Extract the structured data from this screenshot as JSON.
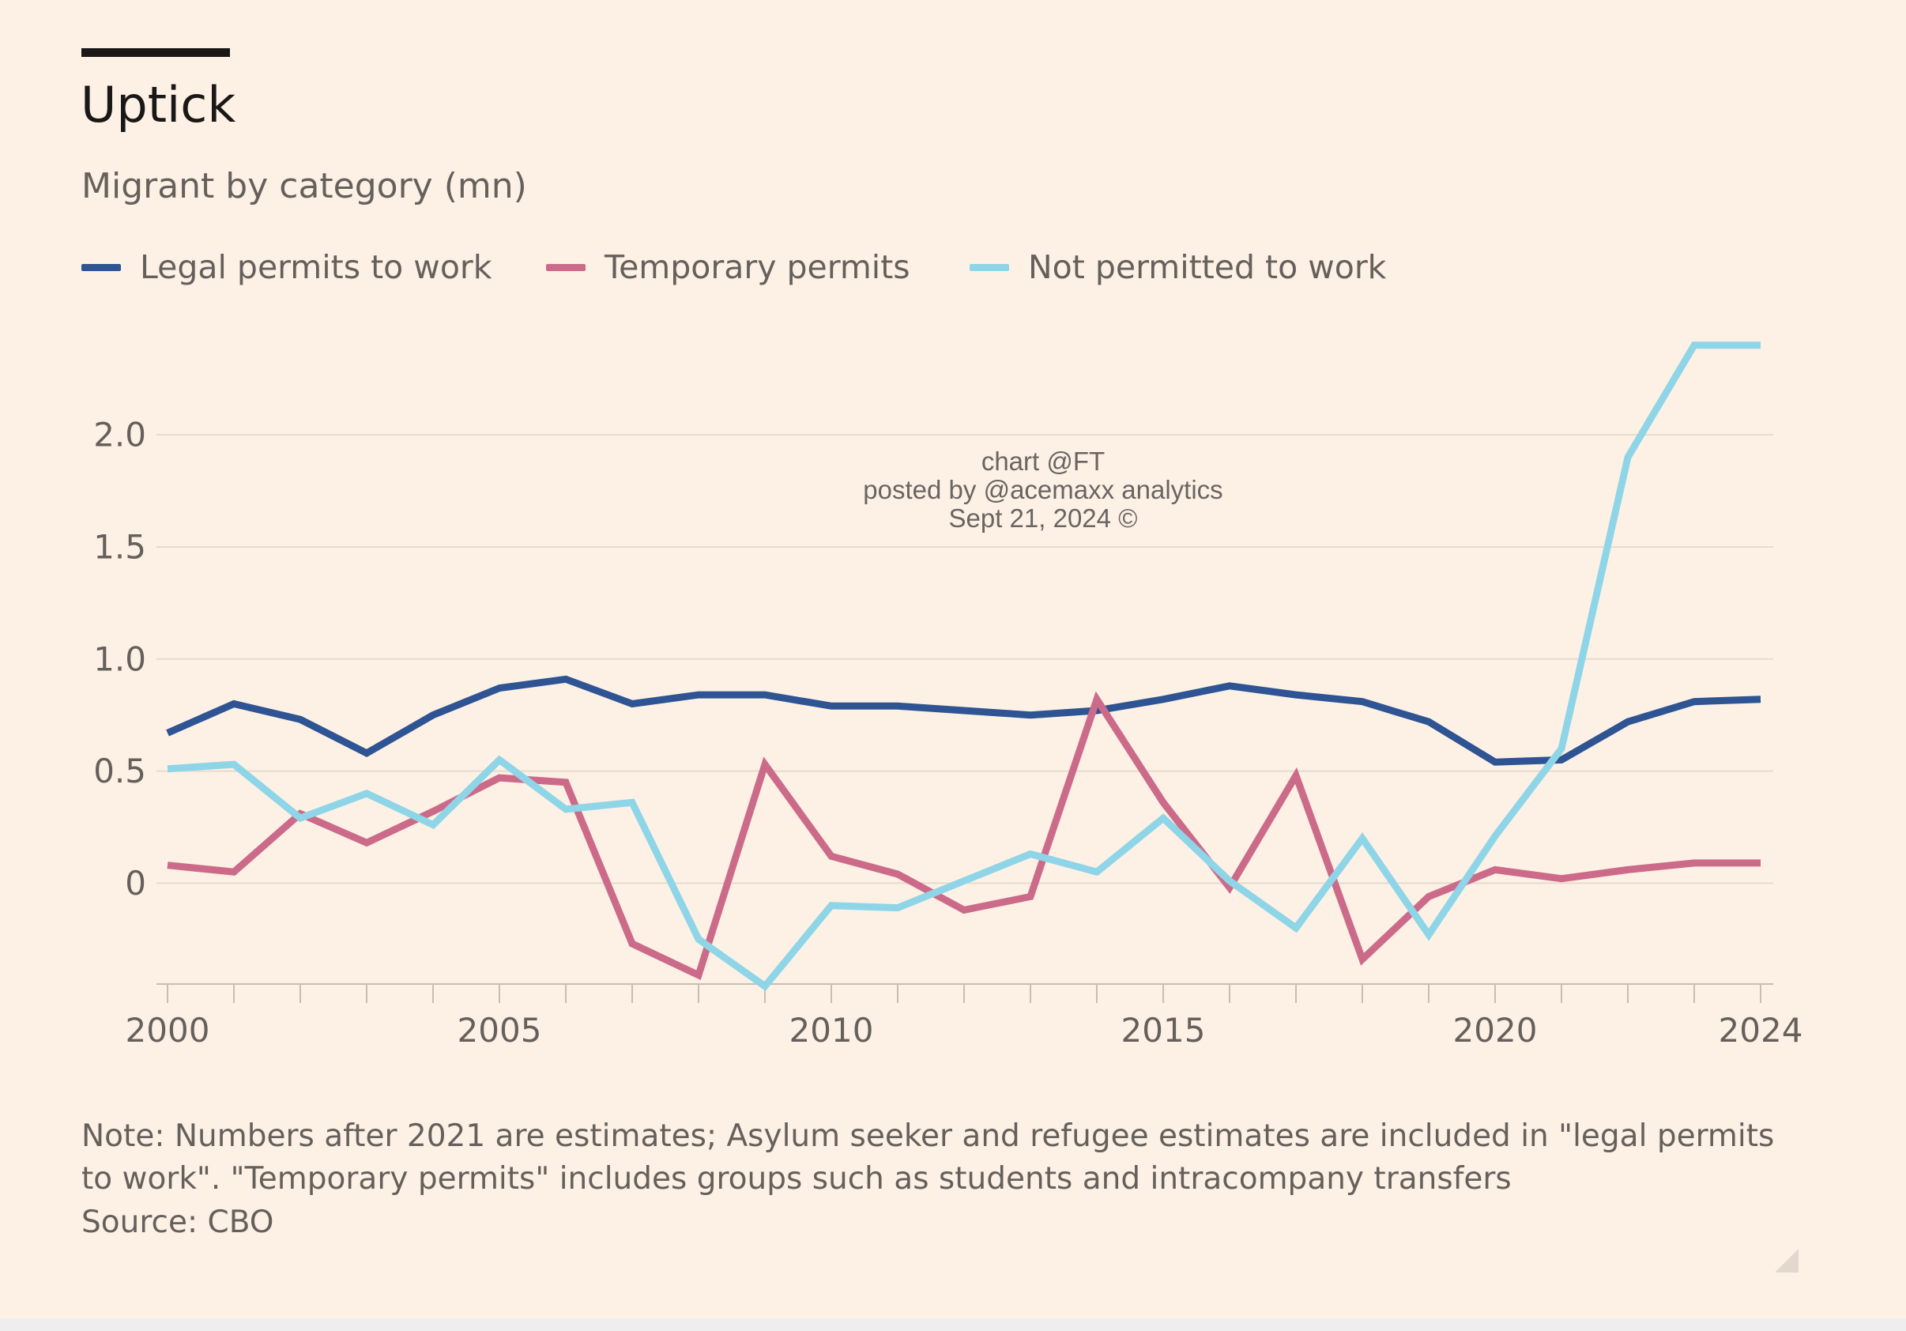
{
  "chart_data": {
    "type": "line",
    "title": "Uptick",
    "subtitle": "Migrant by category (mn)",
    "x": [
      2000,
      2001,
      2002,
      2003,
      2004,
      2005,
      2006,
      2007,
      2008,
      2009,
      2010,
      2011,
      2012,
      2013,
      2014,
      2015,
      2016,
      2017,
      2018,
      2019,
      2020,
      2021,
      2022,
      2023,
      2024
    ],
    "series": [
      {
        "name": "Legal permits to work",
        "color": "#2e5493",
        "values": [
          0.67,
          0.8,
          0.73,
          0.58,
          0.75,
          0.87,
          0.91,
          0.8,
          0.84,
          0.84,
          0.79,
          0.79,
          0.77,
          0.75,
          0.77,
          0.82,
          0.88,
          0.84,
          0.81,
          0.72,
          0.54,
          0.55,
          0.72,
          0.81,
          0.82
        ]
      },
      {
        "name": "Temporary permits",
        "color": "#cc6a8a",
        "values": [
          0.08,
          0.05,
          0.31,
          0.18,
          0.32,
          0.47,
          0.45,
          -0.27,
          -0.41,
          0.53,
          0.12,
          0.04,
          -0.12,
          -0.06,
          0.82,
          0.36,
          -0.02,
          0.48,
          -0.34,
          -0.06,
          0.06,
          0.02,
          0.06,
          0.09,
          0.09
        ]
      },
      {
        "name": "Not permitted to work",
        "color": "#8fd5e8",
        "values": [
          0.51,
          0.53,
          0.29,
          0.4,
          0.26,
          0.55,
          0.33,
          0.36,
          -0.25,
          -0.46,
          -0.1,
          -0.11,
          0.01,
          0.13,
          0.05,
          0.29,
          0.01,
          -0.2,
          0.2,
          -0.23,
          0.21,
          0.6,
          1.9,
          2.4,
          2.4
        ]
      }
    ],
    "yticks": [
      0,
      0.5,
      1.0,
      1.5,
      2.0
    ],
    "ytick_labels": [
      "0",
      "0.5",
      "1.0",
      "1.5",
      "2.0"
    ],
    "xticks": [
      2000,
      2005,
      2010,
      2015,
      2020,
      2024
    ],
    "ylim": [
      -0.45,
      2.6
    ],
    "xlim": [
      2000,
      2024
    ],
    "grid": true,
    "legend_position": "top-left"
  },
  "watermark": [
    "chart @FT",
    "posted by @acemaxx analytics",
    "Sept 21, 2024 ©"
  ],
  "note": "Note: Numbers after 2021 are estimates; Asylum seeker and refugee estimates are included in \"legal permits to work\". \"Temporary permits\" includes groups such as students and intracompany transfers",
  "source": "Source: CBO",
  "colors": {
    "background": "#fdf1e5",
    "grid": "#e7dbd0",
    "axis": "#c8bdb2",
    "text": "#66605c",
    "title": "#1a1817"
  }
}
